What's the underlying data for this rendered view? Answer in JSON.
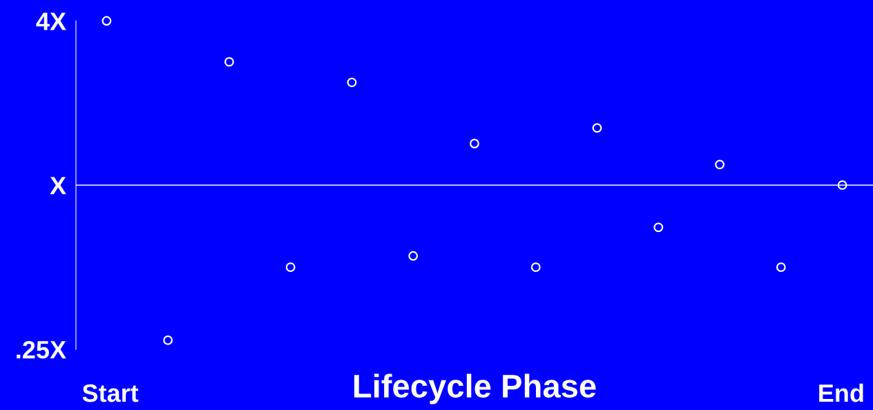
{
  "chart_data": {
    "type": "scatter",
    "xlabel": "Lifecycle Phase",
    "categories": [
      null,
      null,
      null,
      null,
      null,
      null,
      null,
      null,
      null,
      null,
      null,
      null,
      null
    ],
    "series": [
      {
        "color": "#ffffff",
        "values": [
          4,
          0.27,
          2.83,
          0.5,
          2.38,
          0.55,
          1.42,
          0.5,
          1.62,
          0.7,
          1.19,
          0.5,
          1
        ]
      }
    ],
    "log": "y",
    "ylim": [
      0.25,
      4
    ],
    "yticks": [
      {
        "value": 0.25,
        "label": ".25X"
      },
      {
        "value": 1,
        "label": "X"
      },
      {
        "value": 4,
        "label": "4X"
      }
    ],
    "ref_lines": [
      {
        "axis": "y",
        "value": 1,
        "label": null,
        "color": "#ffffff"
      }
    ],
    "annotations": [
      "Start",
      "End"
    ],
    "marker": "circle",
    "grid": false,
    "legend": false
  }
}
